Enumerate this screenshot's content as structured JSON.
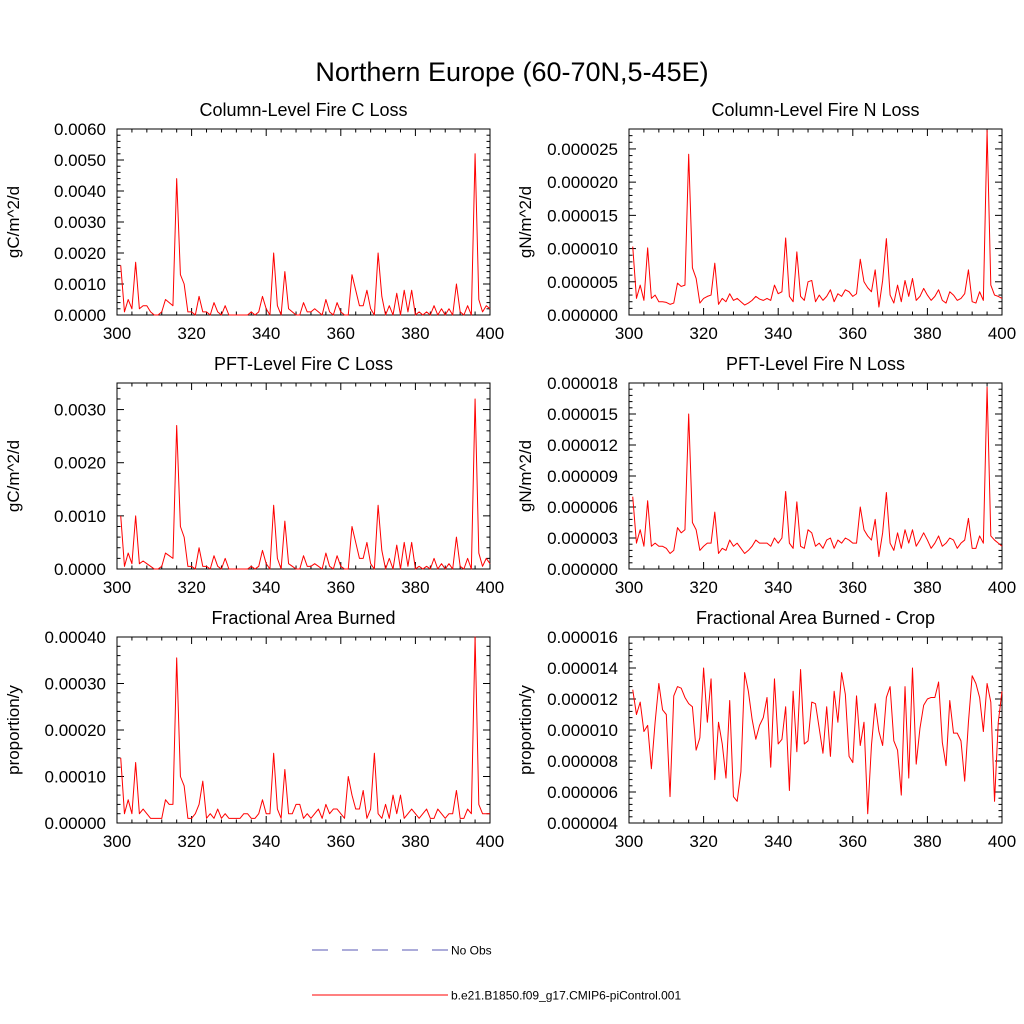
{
  "figure": {
    "title": "Northern Europe (60-70N,5-45E)"
  },
  "legend": {
    "entries": [
      {
        "label": "No Obs",
        "color": "#5a5ab4",
        "style": "dashed"
      },
      {
        "label": "b.e21.B1850.f09_g17.CMIP6-piControl.001",
        "color": "#ff0000",
        "style": "solid"
      }
    ]
  },
  "colors": {
    "series": "#ff0000",
    "axis": "#000000"
  },
  "chart_data": [
    {
      "type": "line",
      "title": "Column-Level Fire C Loss",
      "xlabel": "",
      "ylabel": "gC/m^2/d",
      "xlim": [
        300,
        400
      ],
      "ylim": [
        0,
        0.006
      ],
      "xticks": [
        300,
        320,
        340,
        360,
        380,
        400
      ],
      "xtick_labels": [
        "300",
        "320",
        "340",
        "360",
        "380",
        "400"
      ],
      "yticks": [
        0,
        0.001,
        0.002,
        0.003,
        0.004,
        0.005,
        0.006
      ],
      "ytick_labels": [
        "0.0000",
        "0.0010",
        "0.0020",
        "0.0030",
        "0.0040",
        "0.0050",
        "0.0060"
      ],
      "series": [
        {
          "name": "b.e21.B1850.f09_g17.CMIP6-piControl.001",
          "x_start": 301,
          "values": [
            0.0016,
            0.0001,
            0.0005,
            0.0002,
            0.0017,
            0.0002,
            0.0003,
            0.0003,
            0.0001,
            0.0,
            0.0,
            0.0001,
            0.0005,
            0.0004,
            0.0003,
            0.0044,
            0.0013,
            0.001,
            0.0001,
            0.0001,
            0.0,
            0.0006,
            0.0001,
            0.0001,
            0.0,
            0.0004,
            0.0001,
            0.0,
            0.0003,
            0.0,
            0.0,
            0.0,
            0.0,
            0.0,
            0.0,
            0.0001,
            0.0,
            0.0001,
            0.0006,
            0.0002,
            0.0,
            0.002,
            0.0003,
            0.0,
            0.0014,
            0.0002,
            0.0001,
            0.0,
            0.0,
            0.0004,
            0.0001,
            0.0001,
            0.0002,
            0.0001,
            0.0,
            0.0005,
            0.0001,
            0.0,
            0.0004,
            0.0001,
            0.0,
            0.0,
            0.0013,
            0.0008,
            0.0003,
            0.0003,
            0.0008,
            0.0002,
            0.0,
            0.002,
            0.0006,
            0.0,
            0.0003,
            0.0,
            0.0007,
            0.0,
            0.0008,
            0.0001,
            0.0008,
            0.0,
            0.0001,
            0.0,
            0.0001,
            0.0,
            0.0003,
            0.0,
            0.0002,
            0.0,
            0.0002,
            0.0,
            0.001,
            0.0001,
            0.0,
            0.0003,
            0.0,
            0.0052,
            0.0005,
            0.0001,
            0.0003,
            0.0002
          ]
        }
      ]
    },
    {
      "type": "line",
      "title": "Column-Level Fire N Loss",
      "xlabel": "",
      "ylabel": "gN/m^2/d",
      "xlim": [
        300,
        400
      ],
      "ylim": [
        0,
        2.8e-05
      ],
      "xticks": [
        300,
        320,
        340,
        360,
        380,
        400
      ],
      "xtick_labels": [
        "300",
        "320",
        "340",
        "360",
        "380",
        "400"
      ],
      "yticks": [
        0,
        5e-06,
        1e-05,
        1.5e-05,
        2e-05,
        2.5e-05
      ],
      "ytick_labels": [
        "0.000000",
        "0.000005",
        "0.000010",
        "0.000015",
        "0.000020",
        "0.000025"
      ],
      "series": [
        {
          "name": "b.e21.B1850.f09_g17.CMIP6-piControl.001",
          "x_start": 301,
          "values": [
            1.03e-05,
            2.5e-06,
            4.5e-06,
            2.2e-06,
            1.01e-05,
            2.5e-06,
            3e-06,
            2e-06,
            2e-06,
            1.9e-06,
            1.6e-06,
            1.8e-06,
            4.8e-06,
            4.3e-06,
            4.5e-06,
            2.42e-05,
            7.1e-06,
            5.5e-06,
            1.8e-06,
            2.5e-06,
            2.8e-06,
            3e-06,
            7.8e-06,
            1.6e-06,
            2.5e-06,
            2e-06,
            3.2e-06,
            2.2e-06,
            2.5e-06,
            2e-06,
            1.5e-06,
            1.8e-06,
            2.2e-06,
            2.8e-06,
            2.4e-06,
            2.2e-06,
            2.5e-06,
            2.2e-06,
            4.5e-06,
            3.2e-06,
            3.5e-06,
            1.16e-05,
            2.8e-06,
            2e-06,
            9.5e-06,
            2.8e-06,
            2.2e-06,
            5e-06,
            5.2e-06,
            2e-06,
            3e-06,
            2.2e-06,
            2.8e-06,
            3.8e-06,
            2e-06,
            3.2e-06,
            2.8e-06,
            3.8e-06,
            3.5e-06,
            2.8e-06,
            3.2e-06,
            8.4e-06,
            5e-06,
            4.1e-06,
            3.5e-06,
            6.8e-06,
            1.2e-06,
            5.2e-06,
            1.15e-05,
            3e-06,
            1.8e-06,
            4.5e-06,
            2e-06,
            5.2e-06,
            2.8e-06,
            5.5e-06,
            2.2e-06,
            2.8e-06,
            4e-06,
            3e-06,
            2.2e-06,
            2.8e-06,
            3.8e-06,
            2.2e-06,
            1.8e-06,
            3.5e-06,
            3e-06,
            2.2e-06,
            2.5e-06,
            3.2e-06,
            6.8e-06,
            2e-06,
            1.8e-06,
            3.5e-06,
            2.2e-06,
            2.78e-05,
            4.5e-06,
            3e-06,
            2.8e-06,
            2.5e-06
          ]
        }
      ]
    },
    {
      "type": "line",
      "title": "PFT-Level Fire C Loss",
      "xlabel": "",
      "ylabel": "gC/m^2/d",
      "xlim": [
        300,
        400
      ],
      "ylim": [
        0,
        0.0035
      ],
      "xticks": [
        300,
        320,
        340,
        360,
        380,
        400
      ],
      "xtick_labels": [
        "300",
        "320",
        "340",
        "360",
        "380",
        "400"
      ],
      "yticks": [
        0,
        0.001,
        0.002,
        0.003
      ],
      "ytick_labels": [
        "0.0000",
        "0.0010",
        "0.0020",
        "0.0030"
      ],
      "series": [
        {
          "name": "b.e21.B1850.f09_g17.CMIP6-piControl.001",
          "x_start": 301,
          "values": [
            0.001,
            5e-05,
            0.0003,
            0.0001,
            0.001,
            0.0001,
            0.00015,
            0.0001,
            5e-05,
            0.0,
            0.0,
            5e-05,
            0.0003,
            0.00025,
            0.0002,
            0.0027,
            0.0008,
            0.0006,
            5e-05,
            5e-05,
            0.0,
            0.0004,
            5e-05,
            5e-05,
            0.0,
            0.00025,
            5e-05,
            0.0,
            0.0002,
            0.0,
            0.0,
            0.0,
            0.0,
            0.0,
            0.0,
            5e-05,
            0.0,
            5e-05,
            0.00035,
            0.0001,
            0.0,
            0.0012,
            0.0002,
            0.0,
            0.0009,
            0.0001,
            5e-05,
            0.0,
            0.0,
            0.00025,
            5e-05,
            5e-05,
            0.0001,
            5e-05,
            0.0,
            0.0003,
            5e-05,
            0.0,
            0.00025,
            5e-05,
            0.0,
            0.0,
            0.0008,
            0.0005,
            0.0002,
            0.0002,
            0.0005,
            0.0001,
            0.0,
            0.0012,
            0.00035,
            0.0,
            0.0002,
            0.0,
            0.00045,
            0.0,
            0.0005,
            5e-05,
            0.0005,
            0.0,
            5e-05,
            0.0,
            5e-05,
            0.0,
            0.0002,
            0.0,
            0.0001,
            0.0,
            0.0001,
            0.0,
            0.0006,
            5e-05,
            0.0,
            0.0002,
            0.0,
            0.0032,
            0.0003,
            5e-05,
            0.0002,
            0.0001
          ]
        }
      ]
    },
    {
      "type": "line",
      "title": "PFT-Level Fire N Loss",
      "xlabel": "",
      "ylabel": "gN/m^2/d",
      "xlim": [
        300,
        400
      ],
      "ylim": [
        0,
        1.8e-05
      ],
      "xticks": [
        300,
        320,
        340,
        360,
        380,
        400
      ],
      "xtick_labels": [
        "300",
        "320",
        "340",
        "360",
        "380",
        "400"
      ],
      "yticks": [
        0,
        3e-06,
        6e-06,
        9e-06,
        1.2e-05,
        1.5e-05,
        1.8e-05
      ],
      "ytick_labels": [
        "0.000000",
        "0.000003",
        "0.000006",
        "0.000009",
        "0.000012",
        "0.000015",
        "0.000018"
      ],
      "series": [
        {
          "name": "b.e21.B1850.f09_g17.CMIP6-piControl.001",
          "x_start": 301,
          "values": [
            7e-06,
            2.5e-06,
            3.8e-06,
            2.2e-06,
            6.6e-06,
            2.2e-06,
            2.5e-06,
            2.2e-06,
            2.2e-06,
            2e-06,
            1.5e-06,
            1.8e-06,
            4e-06,
            3.5e-06,
            3.8e-06,
            1.5e-05,
            4.5e-06,
            3.8e-06,
            1.8e-06,
            2.2e-06,
            2.5e-06,
            2.5e-06,
            5.5e-06,
            1.5e-06,
            2e-06,
            1.8e-06,
            2.8e-06,
            2.2e-06,
            2.5e-06,
            2e-06,
            1.5e-06,
            1.8e-06,
            2.2e-06,
            2.8e-06,
            2.5e-06,
            2.5e-06,
            2.5e-06,
            2.2e-06,
            3e-06,
            2.5e-06,
            3e-06,
            7.5e-06,
            2.5e-06,
            2e-06,
            6.5e-06,
            2.2e-06,
            2e-06,
            3.8e-06,
            3.5e-06,
            2.2e-06,
            2.5e-06,
            2e-06,
            2.8e-06,
            3e-06,
            2e-06,
            2.8e-06,
            2.5e-06,
            3e-06,
            2.8e-06,
            2.5e-06,
            2.5e-06,
            6e-06,
            3.8e-06,
            3.2e-06,
            2.8e-06,
            4.8e-06,
            1.2e-06,
            3.5e-06,
            7.4e-06,
            2.5e-06,
            1.8e-06,
            3.5e-06,
            2e-06,
            3.8e-06,
            2.5e-06,
            3.8e-06,
            2.2e-06,
            2.8e-06,
            3.5e-06,
            2.8e-06,
            2e-06,
            2.5e-06,
            3.2e-06,
            2.2e-06,
            2.5e-06,
            3e-06,
            2.8e-06,
            2e-06,
            2.5e-06,
            2.8e-06,
            4.9e-06,
            2e-06,
            2e-06,
            3.2e-06,
            2.5e-06,
            1.76e-05,
            3.2e-06,
            2.8e-06,
            2.5e-06,
            2.2e-06
          ]
        }
      ]
    },
    {
      "type": "line",
      "title": "Fractional Area Burned",
      "xlabel": "",
      "ylabel": "proportion/y",
      "xlim": [
        300,
        400
      ],
      "ylim": [
        0,
        0.0004
      ],
      "xticks": [
        300,
        320,
        340,
        360,
        380,
        400
      ],
      "xtick_labels": [
        "300",
        "320",
        "340",
        "360",
        "380",
        "400"
      ],
      "yticks": [
        0,
        0.0001,
        0.0002,
        0.0003,
        0.0004
      ],
      "ytick_labels": [
        "0.00000",
        "0.00010",
        "0.00020",
        "0.00030",
        "0.00040"
      ],
      "series": [
        {
          "name": "b.e21.B1850.f09_g17.CMIP6-piControl.001",
          "x_start": 301,
          "values": [
            0.00014,
            2e-05,
            5e-05,
            2e-05,
            0.00013,
            2e-05,
            3e-05,
            2e-05,
            1e-05,
            1e-05,
            1e-05,
            1e-05,
            5e-05,
            4e-05,
            4e-05,
            0.000355,
            0.0001,
            8e-05,
            1e-05,
            1e-05,
            2e-05,
            4e-05,
            9e-05,
            1e-05,
            2e-05,
            1e-05,
            3e-05,
            1e-05,
            2e-05,
            1e-05,
            1e-05,
            1e-05,
            1e-05,
            2e-05,
            2e-05,
            1e-05,
            1e-05,
            2e-05,
            5e-05,
            2e-05,
            2e-05,
            0.00015,
            3e-05,
            1e-05,
            0.000115,
            2e-05,
            2e-05,
            4e-05,
            4e-05,
            1e-05,
            2e-05,
            1e-05,
            2e-05,
            3e-05,
            1e-05,
            4e-05,
            2e-05,
            3e-05,
            3e-05,
            2e-05,
            1e-05,
            0.0001,
            6e-05,
            3e-05,
            3e-05,
            7e-05,
            1e-05,
            3e-05,
            0.00015,
            2e-05,
            1e-05,
            4e-05,
            1e-05,
            6e-05,
            2e-05,
            6e-05,
            1e-05,
            2e-05,
            3e-05,
            2e-05,
            1e-05,
            2e-05,
            3e-05,
            1e-05,
            1e-05,
            3e-05,
            2e-05,
            1e-05,
            2e-05,
            2e-05,
            7e-05,
            1e-05,
            1e-05,
            3e-05,
            2e-05,
            0.0004,
            4e-05,
            2e-05,
            2e-05,
            2e-05
          ]
        }
      ]
    },
    {
      "type": "line",
      "title": "Fractional Area Burned - Crop",
      "xlabel": "",
      "ylabel": "proportion/y",
      "xlim": [
        300,
        400
      ],
      "ylim": [
        4e-06,
        1.6e-05
      ],
      "xticks": [
        300,
        320,
        340,
        360,
        380,
        400
      ],
      "xtick_labels": [
        "300",
        "320",
        "340",
        "360",
        "380",
        "400"
      ],
      "yticks": [
        4e-06,
        6e-06,
        8e-06,
        1e-05,
        1.2e-05,
        1.4e-05,
        1.6e-05
      ],
      "ytick_labels": [
        "0.000004",
        "0.000006",
        "0.000008",
        "0.000010",
        "0.000012",
        "0.000014",
        "0.000016"
      ],
      "series": [
        {
          "name": "b.e21.B1850.f09_g17.CMIP6-piControl.001",
          "x_start": 301,
          "values": [
            1.26e-05,
            1.1e-05,
            1.18e-05,
            9.9e-06,
            1.03e-05,
            7.5e-06,
            1.05e-05,
            1.3e-05,
            1.13e-05,
            1.1e-05,
            5.7e-06,
            1.22e-05,
            1.28e-05,
            1.27e-05,
            1.21e-05,
            1.17e-05,
            1.15e-05,
            8.7e-06,
            9.5e-06,
            1.4e-05,
            1.05e-05,
            1.33e-05,
            6.8e-06,
            1.05e-05,
            9.1e-06,
            6.9e-06,
            1.19e-05,
            5.7e-06,
            5.4e-06,
            7.3e-06,
            1.37e-05,
            1.25e-05,
            1.07e-05,
            9.4e-06,
            1.03e-05,
            1.08e-05,
            1.21e-05,
            7.6e-06,
            1.33e-05,
            9.1e-06,
            9.4e-06,
            1.15e-05,
            6.1e-06,
            1.25e-05,
            8.6e-06,
            1.39e-05,
            9.1e-06,
            9.3e-06,
            1.18e-05,
            1.17e-05,
            1.01e-05,
            8.5e-06,
            1.15e-05,
            8.3e-06,
            1.25e-05,
            1.05e-05,
            1.37e-05,
            1.23e-05,
            8.3e-06,
            7.9e-06,
            1.22e-05,
            9e-06,
            1.05e-05,
            4.6e-06,
            9e-06,
            1.17e-05,
            9.9e-06,
            9e-06,
            1.21e-05,
            1.28e-05,
            9.3e-06,
            8.7e-06,
            5.8e-06,
            1.28e-05,
            6.9e-06,
            1.4e-05,
            7.8e-06,
            1.01e-05,
            1.16e-05,
            1.2e-05,
            1.21e-05,
            1.21e-05,
            1.31e-05,
            9.2e-06,
            7.7e-06,
            1.19e-05,
            9.8e-06,
            9.8e-06,
            9.3e-06,
            6.7e-06,
            1.05e-05,
            1.35e-05,
            1.3e-05,
            1.21e-05,
            9.9e-06,
            1.3e-05,
            1.18e-05,
            5.4e-06,
            1.05e-05,
            1.25e-05
          ]
        }
      ]
    }
  ]
}
